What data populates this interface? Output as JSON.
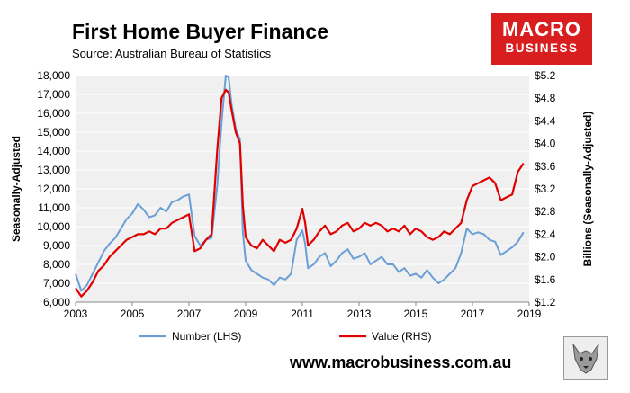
{
  "header": {
    "title": "First Home Buyer Finance",
    "source": "Source: Australian Bureau of Statistics"
  },
  "logo": {
    "line1": "MACRO",
    "line2": "BUSINESS"
  },
  "footer": {
    "url": "www.macrobusiness.com.au"
  },
  "badge": {
    "icon": "wolf-emblem-icon"
  },
  "colors": {
    "number": "#6a9fd6",
    "value": "#e00000",
    "plot_bg": "#f0f0f0",
    "grid": "#ffffff"
  },
  "chart_data": {
    "type": "line",
    "title": "First Home Buyer Finance",
    "xlabel": "",
    "ylabel": "Seasonally-Adjusted",
    "y2label": "Billions (Seasonally-Adjusted)",
    "xlim": [
      2003,
      2019
    ],
    "ylim": [
      6000,
      18000
    ],
    "y2lim": [
      1.2,
      5.2
    ],
    "x_ticks": [
      "2003",
      "2005",
      "2007",
      "2009",
      "2011",
      "2013",
      "2015",
      "2017",
      "2019"
    ],
    "y_ticks": [
      "6,000",
      "7,000",
      "8,000",
      "9,000",
      "10,000",
      "11,000",
      "12,000",
      "13,000",
      "14,000",
      "15,000",
      "16,000",
      "17,000",
      "18,000"
    ],
    "y2_ticks": [
      "$1.2",
      "$1.6",
      "$2.0",
      "$2.4",
      "$2.8",
      "$3.2",
      "$3.6",
      "$4.0",
      "$4.4",
      "$4.8",
      "$5.2"
    ],
    "grid": true,
    "legend": "bottom",
    "series": [
      {
        "name": "Number (LHS)",
        "axis": "left",
        "color": "#6a9fd6",
        "x": [
          2003.0,
          2003.2,
          2003.4,
          2003.6,
          2003.8,
          2004.0,
          2004.2,
          2004.4,
          2004.6,
          2004.8,
          2005.0,
          2005.2,
          2005.4,
          2005.6,
          2005.8,
          2006.0,
          2006.2,
          2006.4,
          2006.6,
          2006.8,
          2007.0,
          2007.2,
          2007.4,
          2007.6,
          2007.8,
          2008.0,
          2008.15,
          2008.3,
          2008.4,
          2008.5,
          2008.65,
          2008.8,
          2008.9,
          2009.0,
          2009.2,
          2009.4,
          2009.6,
          2009.8,
          2010.0,
          2010.2,
          2010.4,
          2010.6,
          2010.8,
          2011.0,
          2011.1,
          2011.2,
          2011.4,
          2011.6,
          2011.8,
          2012.0,
          2012.2,
          2012.4,
          2012.6,
          2012.8,
          2013.0,
          2013.2,
          2013.4,
          2013.6,
          2013.8,
          2014.0,
          2014.2,
          2014.4,
          2014.6,
          2014.8,
          2015.0,
          2015.2,
          2015.4,
          2015.6,
          2015.8,
          2016.0,
          2016.2,
          2016.4,
          2016.6,
          2016.8,
          2017.0,
          2017.2,
          2017.4,
          2017.6,
          2017.8,
          2018.0,
          2018.2,
          2018.4,
          2018.6,
          2018.8
        ],
        "y": [
          7500,
          6600,
          6900,
          7500,
          8100,
          8700,
          9100,
          9400,
          9900,
          10400,
          10700,
          11200,
          10900,
          10500,
          10600,
          11000,
          10800,
          11300,
          11400,
          11600,
          11700,
          9500,
          9000,
          9300,
          9400,
          12200,
          15500,
          18000,
          17900,
          16500,
          15200,
          14600,
          9700,
          8200,
          7700,
          7500,
          7300,
          7200,
          6900,
          7300,
          7200,
          7500,
          9300,
          9800,
          9100,
          7800,
          8000,
          8400,
          8600,
          7900,
          8200,
          8600,
          8800,
          8300,
          8400,
          8600,
          8000,
          8200,
          8400,
          8000,
          8000,
          7600,
          7800,
          7400,
          7500,
          7300,
          7700,
          7300,
          7000,
          7200,
          7500,
          7800,
          8600,
          9900,
          9600,
          9700,
          9600,
          9300,
          9200,
          8500,
          8700,
          8900,
          9200,
          9700
        ]
      },
      {
        "name": "Value (RHS)",
        "axis": "right",
        "color": "#e00000",
        "x": [
          2003.0,
          2003.2,
          2003.4,
          2003.6,
          2003.8,
          2004.0,
          2004.2,
          2004.4,
          2004.6,
          2004.8,
          2005.0,
          2005.2,
          2005.4,
          2005.6,
          2005.8,
          2006.0,
          2006.2,
          2006.4,
          2006.6,
          2006.8,
          2007.0,
          2007.2,
          2007.4,
          2007.6,
          2007.8,
          2008.0,
          2008.15,
          2008.3,
          2008.4,
          2008.5,
          2008.65,
          2008.8,
          2008.9,
          2009.0,
          2009.2,
          2009.4,
          2009.6,
          2009.8,
          2010.0,
          2010.2,
          2010.4,
          2010.6,
          2010.8,
          2011.0,
          2011.1,
          2011.2,
          2011.4,
          2011.6,
          2011.8,
          2012.0,
          2012.2,
          2012.4,
          2012.6,
          2012.8,
          2013.0,
          2013.2,
          2013.4,
          2013.6,
          2013.8,
          2014.0,
          2014.2,
          2014.4,
          2014.6,
          2014.8,
          2015.0,
          2015.2,
          2015.4,
          2015.6,
          2015.8,
          2016.0,
          2016.2,
          2016.4,
          2016.6,
          2016.8,
          2017.0,
          2017.2,
          2017.4,
          2017.6,
          2017.8,
          2018.0,
          2018.2,
          2018.4,
          2018.6,
          2018.8
        ],
        "y": [
          1.45,
          1.3,
          1.4,
          1.55,
          1.75,
          1.85,
          2.0,
          2.1,
          2.2,
          2.3,
          2.35,
          2.4,
          2.4,
          2.45,
          2.4,
          2.5,
          2.5,
          2.6,
          2.65,
          2.7,
          2.75,
          2.1,
          2.15,
          2.3,
          2.4,
          3.9,
          4.8,
          4.95,
          4.9,
          4.6,
          4.2,
          4.0,
          2.9,
          2.35,
          2.2,
          2.15,
          2.3,
          2.2,
          2.1,
          2.3,
          2.25,
          2.3,
          2.5,
          2.85,
          2.6,
          2.2,
          2.3,
          2.45,
          2.55,
          2.4,
          2.45,
          2.55,
          2.6,
          2.45,
          2.5,
          2.6,
          2.55,
          2.6,
          2.55,
          2.45,
          2.5,
          2.45,
          2.55,
          2.4,
          2.5,
          2.45,
          2.35,
          2.3,
          2.35,
          2.45,
          2.4,
          2.5,
          2.6,
          3.0,
          3.25,
          3.3,
          3.35,
          3.4,
          3.3,
          3.0,
          3.05,
          3.1,
          3.5,
          3.65
        ]
      }
    ]
  }
}
